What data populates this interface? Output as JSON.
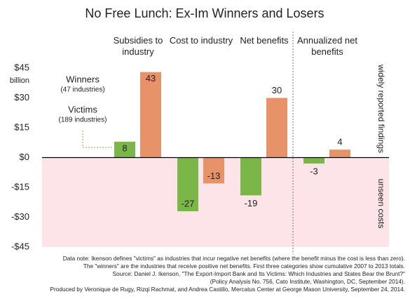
{
  "chart_data": {
    "type": "bar",
    "title": "No Free Lunch: Ex-Im Winners and Losers",
    "categories": [
      "Subsidies to industry",
      "Cost to industry",
      "Net benefits",
      "Annualized net benefits"
    ],
    "series": [
      {
        "name": "Victims",
        "color": "#7ab648",
        "values": [
          8,
          -27,
          -19,
          -3
        ]
      },
      {
        "name": "Winners",
        "color": "#e8926a",
        "values": [
          43,
          -13,
          30,
          4
        ]
      }
    ],
    "legend_notes": [
      "(189 industries)",
      "(47 industries)"
    ],
    "ylim": [
      -45,
      45
    ],
    "yticks": [
      {
        "value": 45,
        "label": "$45"
      },
      {
        "value": 30,
        "label": "$30"
      },
      {
        "value": 15,
        "label": "$15"
      },
      {
        "value": 0,
        "label": "$0"
      },
      {
        "value": -15,
        "label": "-$15"
      },
      {
        "value": -30,
        "label": "-$30"
      },
      {
        "value": -45,
        "label": "-$45"
      }
    ],
    "y_unit": "billion",
    "side_labels": [
      "widely reported findings",
      "unseen costs"
    ],
    "notes": [
      "Data note: Ikenson defines \"victims\" as industries that incur negative net benefits (where the benefit minus the cost is less than zero).",
      "The \"winners\" are the industries that receive positive net benefits. First three categories show cumulative 2007 to 2013 totals.",
      "Source: Daniel J. Ikenson, \"The Export-Import Bank and Its Victims: Which Industries and States Bear the Brunt?\"",
      "(Policy Analysis No. 756, Cato Institute, Washington, DC, September 2014).",
      "Produced by Veronique de Rugy, Rizqi Rachmat, and Andrea Castillo, Mercatus Center at George Mason University, September 24, 2014."
    ]
  }
}
